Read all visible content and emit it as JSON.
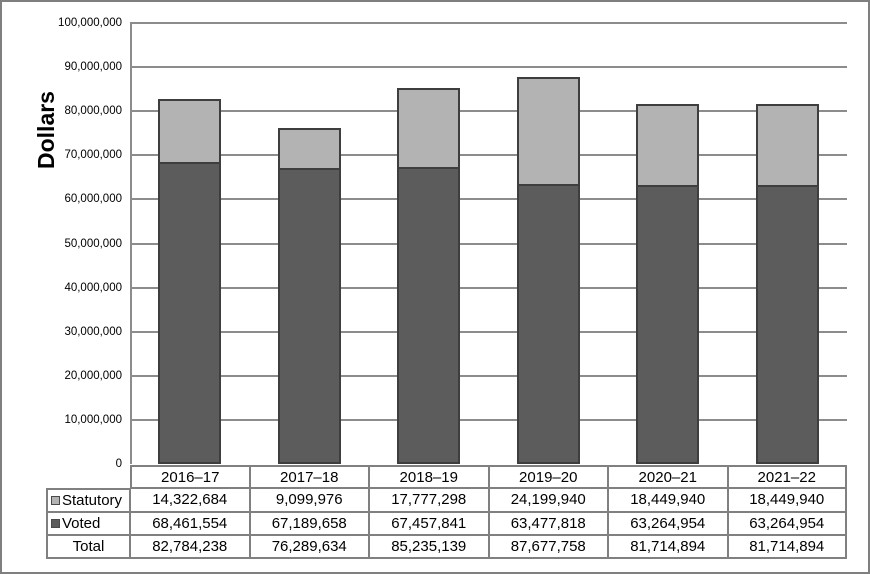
{
  "colors": {
    "background": "#FFFFFF",
    "frame_border": "#7F7F7F",
    "statutory_fill": "#B3B3B3",
    "voted_fill": "#5C5C5C",
    "bar_border": "#3E3E3E",
    "gridline": "#8C8C8C",
    "axis_line": "#8C8C8C",
    "table_border": "#808080",
    "text": "#000000"
  },
  "chart_data": {
    "type": "bar",
    "stacked": true,
    "title": "",
    "ylabel": "Dollars",
    "xlabel": "",
    "categories": [
      "2016–17",
      "2017–18",
      "2018–19",
      "2019–20",
      "2020–21",
      "2021–22"
    ],
    "series": [
      {
        "name": "Voted",
        "color_key": "voted_fill",
        "values": [
          68461554,
          67189658,
          67457841,
          63477818,
          63264954,
          63264954
        ]
      },
      {
        "name": "Statutory",
        "color_key": "statutory_fill",
        "values": [
          14322684,
          9099976,
          17777298,
          24199940,
          18449940,
          18449940
        ]
      }
    ],
    "totals": [
      82784238,
      76289634,
      85235139,
      87677758,
      81714894,
      81714894
    ],
    "ylim": [
      0,
      100000000
    ],
    "ytick_step": 10000000,
    "ytick_labels": [
      "0",
      "10,000,000",
      "20,000,000",
      "30,000,000",
      "40,000,000",
      "50,000,000",
      "60,000,000",
      "70,000,000",
      "80,000,000",
      "90,000,000",
      "100,000,000"
    ],
    "grid": true,
    "legend_position": "in-table-left-column"
  },
  "table": {
    "header": [
      "2016–17",
      "2017–18",
      "2018–19",
      "2019–20",
      "2020–21",
      "2021–22"
    ],
    "rows": [
      {
        "label": "Statutory",
        "legend_key": "statutory",
        "cells": [
          "14,322,684",
          "9,099,976",
          "17,777,298",
          "24,199,940",
          "18,449,940",
          "18,449,940"
        ]
      },
      {
        "label": "Voted",
        "legend_key": "voted",
        "cells": [
          "68,461,554",
          "67,189,658",
          "67,457,841",
          "63,477,818",
          "63,264,954",
          "63,264,954"
        ]
      },
      {
        "label": "Total",
        "legend_key": null,
        "cells": [
          "82,784,238",
          "76,289,634",
          "85,235,139",
          "87,677,758",
          "81,714,894",
          "81,714,894"
        ]
      }
    ]
  }
}
